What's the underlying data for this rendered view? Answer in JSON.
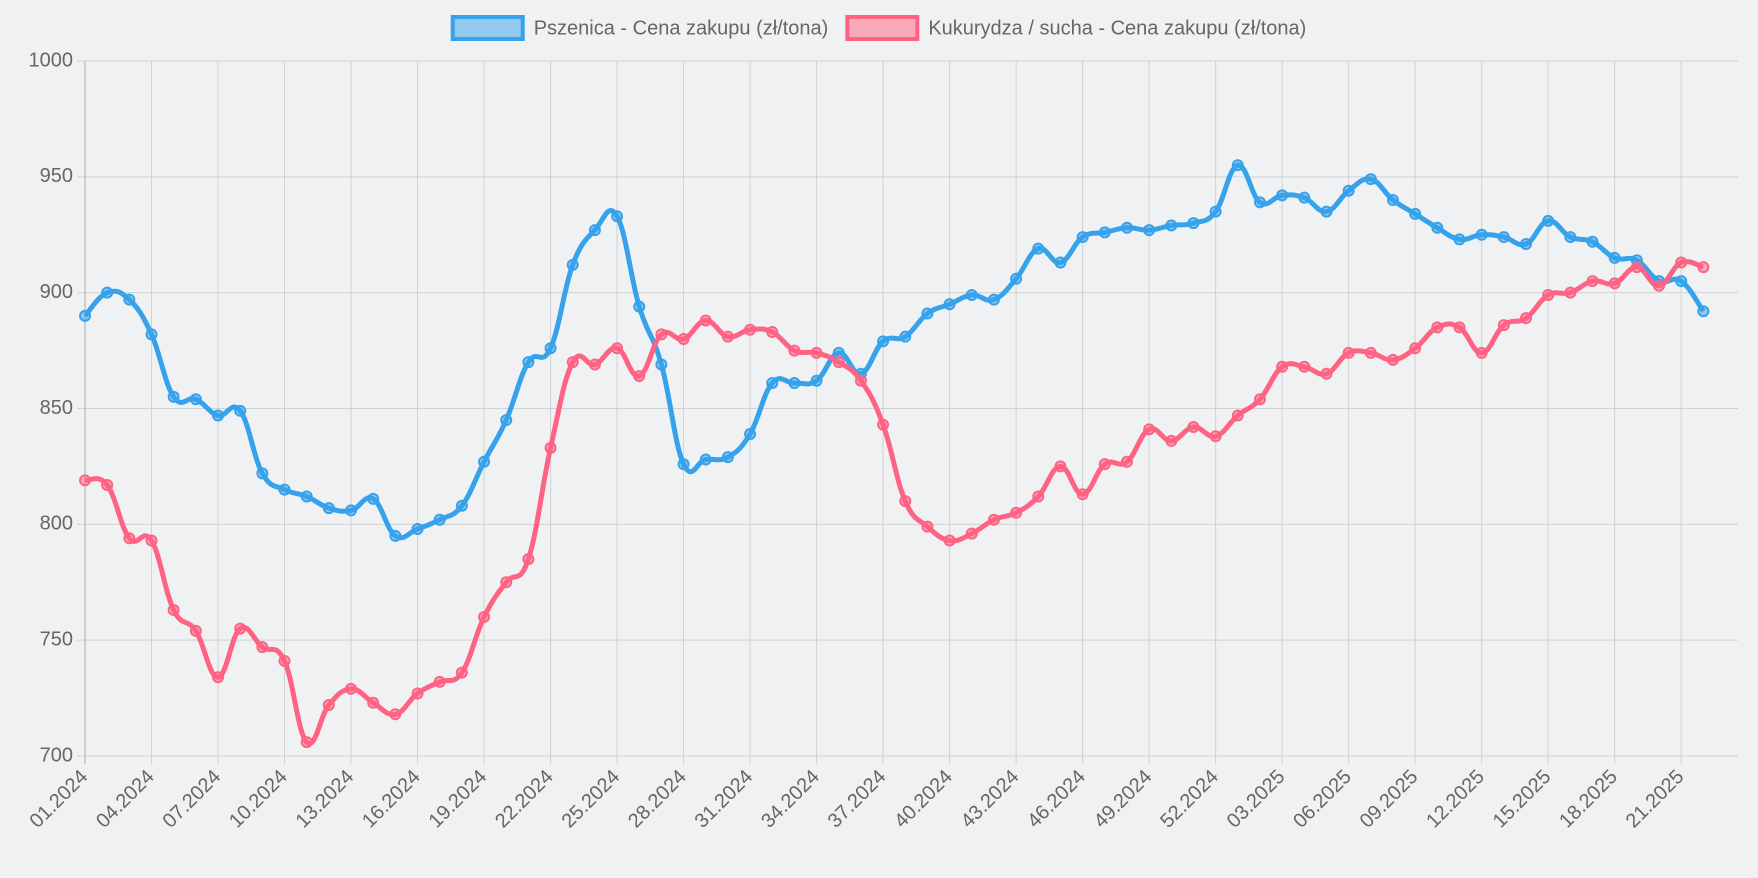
{
  "chart_data": {
    "type": "line",
    "categories": [
      "01.2024",
      null,
      null,
      "04.2024",
      null,
      null,
      "07.2024",
      null,
      null,
      "10.2024",
      null,
      null,
      "13.2024",
      null,
      null,
      "16.2024",
      null,
      null,
      "19.2024",
      null,
      null,
      "22.2024",
      null,
      null,
      "25.2024",
      null,
      null,
      "28.2024",
      null,
      null,
      "31.2024",
      null,
      null,
      "34.2024",
      null,
      null,
      "37.2024",
      null,
      null,
      "40.2024",
      null,
      null,
      "43.2024",
      null,
      null,
      "46.2024",
      null,
      null,
      "49.2024",
      null,
      null,
      "52.2024",
      null,
      null,
      "03.2025",
      null,
      null,
      "06.2025",
      null,
      null,
      "09.2025",
      null,
      null,
      "12.2025",
      null,
      null,
      "15.2025",
      null,
      null,
      "18.2025",
      null,
      null,
      "21.2025",
      null
    ],
    "series": [
      {
        "name": "Pszenica - Cena zakupu (zł/tona)",
        "color": "#36a2eb",
        "values": [
          890,
          900,
          897,
          882,
          855,
          854,
          847,
          849,
          822,
          815,
          812,
          807,
          806,
          811,
          795,
          798,
          802,
          808,
          827,
          845,
          870,
          876,
          912,
          927,
          933,
          894,
          869,
          826,
          828,
          829,
          839,
          861,
          861,
          862,
          874,
          865,
          879,
          881,
          891,
          895,
          899,
          897,
          906,
          919,
          913,
          924,
          926,
          928,
          927,
          929,
          930,
          935,
          955,
          939,
          942,
          941,
          935,
          944,
          949,
          940,
          934,
          928,
          923,
          925,
          924,
          921,
          931,
          924,
          922,
          915,
          914,
          905,
          905,
          892
        ]
      },
      {
        "name": "Kukurydza / sucha - Cena zakupu (zł/tona)",
        "color": "#ff6384",
        "values": [
          819,
          817,
          794,
          793,
          763,
          754,
          734,
          755,
          747,
          741,
          706,
          722,
          729,
          723,
          718,
          727,
          732,
          736,
          760,
          775,
          785,
          833,
          870,
          869,
          876,
          864,
          882,
          880,
          888,
          881,
          884,
          883,
          875,
          874,
          870,
          862,
          843,
          810,
          799,
          793,
          796,
          802,
          805,
          812,
          825,
          813,
          826,
          827,
          841,
          836,
          842,
          838,
          847,
          854,
          868,
          868,
          865,
          874,
          874,
          871,
          876,
          885,
          885,
          874,
          886,
          889,
          899,
          900,
          905,
          904,
          911,
          903,
          913,
          911
        ]
      }
    ],
    "ylim": [
      700,
      1000
    ],
    "yticks": [
      700,
      750,
      800,
      850,
      900,
      950,
      1000
    ],
    "grid": true,
    "legend": "top"
  }
}
